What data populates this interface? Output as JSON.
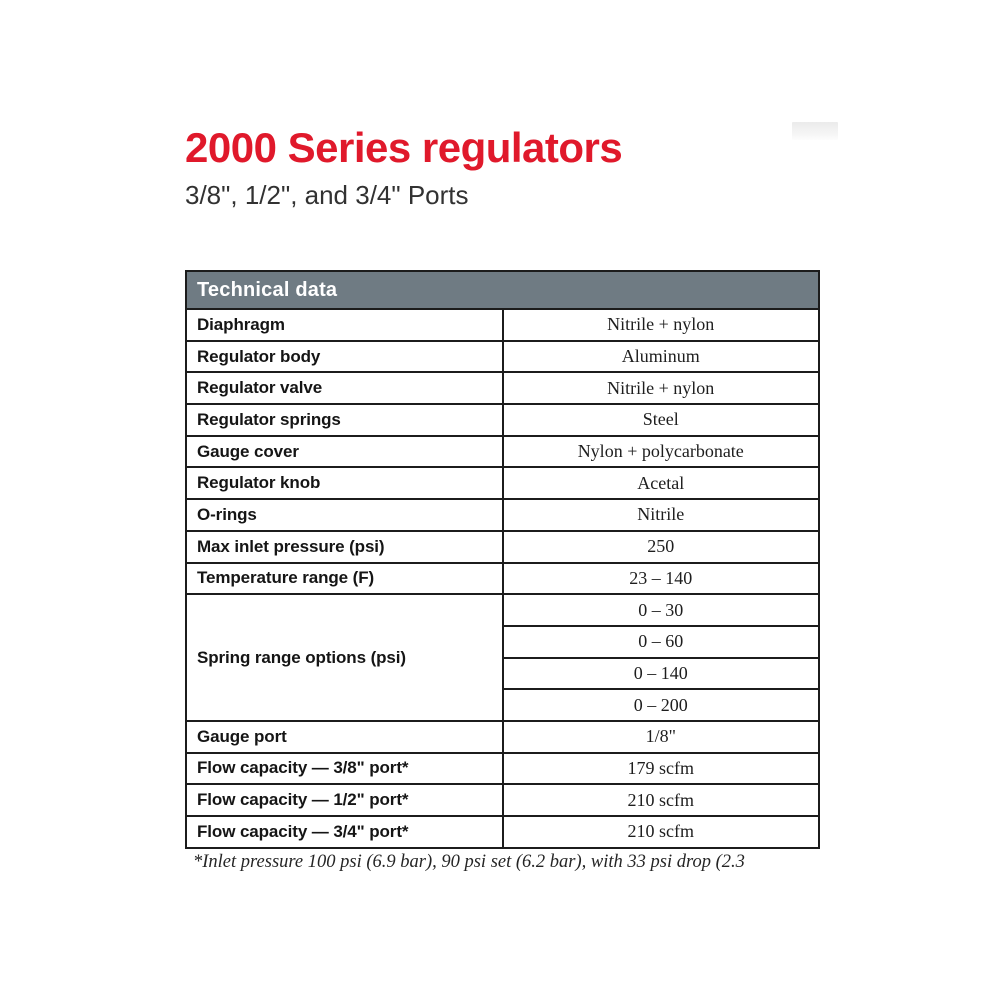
{
  "page": {
    "title": "2000 Series regulators",
    "subtitle": "3/8\", 1/2\", and 3/4\" Ports",
    "title_color": "#e0192b",
    "header_bg_color": "#6f7b83",
    "border_color": "#1c1c1c"
  },
  "table": {
    "title": "Technical data",
    "rows_top": [
      {
        "label": "Diaphragm",
        "value": "Nitrile + nylon"
      },
      {
        "label": "Regulator body",
        "value": "Aluminum"
      },
      {
        "label": "Regulator valve",
        "value": "Nitrile + nylon"
      },
      {
        "label": "Regulator springs",
        "value": "Steel"
      },
      {
        "label": "Gauge cover",
        "value": "Nylon + polycarbonate"
      },
      {
        "label": "Regulator knob",
        "value": "Acetal"
      },
      {
        "label": "O-rings",
        "value": "Nitrile"
      },
      {
        "label": "Max inlet pressure (psi)",
        "value": "250"
      },
      {
        "label": "Temperature range (F)",
        "value": "23 – 140"
      }
    ],
    "spring_group": {
      "label": "Spring range options (psi)",
      "values": [
        "0 – 30",
        "0 – 60",
        "0 – 140",
        "0 – 200"
      ]
    },
    "rows_bottom": [
      {
        "label": "Gauge port",
        "value": "1/8\""
      },
      {
        "label": "Flow capacity — 3/8\" port*",
        "value": "179 scfm"
      },
      {
        "label": "Flow capacity — 1/2\" port*",
        "value": "210 scfm"
      },
      {
        "label": "Flow capacity — 3/4\" port*",
        "value": "210 scfm"
      }
    ]
  },
  "footnote": "*Inlet pressure 100 psi (6.9 bar), 90 psi set (6.2 bar), with 33 psi drop (2.3"
}
